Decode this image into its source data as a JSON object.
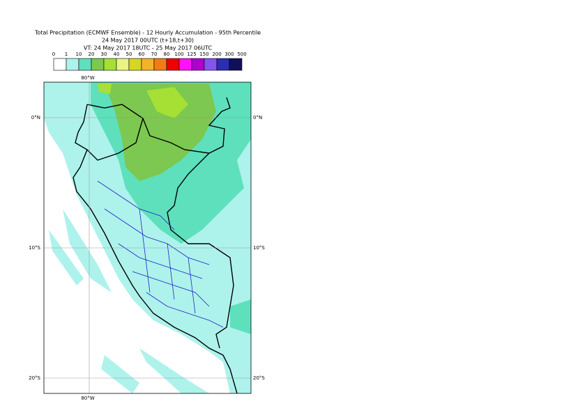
{
  "header": {
    "title": [
      "Total Precipitation (ECMWF Ensemble) - 12 Hourly Accumulation - 95th Percentile",
      "24 May 2017 00UTC (t+18,t+30)",
      "VT: 24 May 2017 18UTC - 25 May 2017 06UTC"
    ]
  },
  "legend": {
    "labels": [
      "0",
      "1",
      "10",
      "20",
      "30",
      "40",
      "50",
      "60",
      "70",
      "80",
      "100",
      "125",
      "150",
      "200",
      "300",
      "500"
    ],
    "colors": [
      "#ffffff",
      "#aef2ec",
      "#5ee0bc",
      "#7cc850",
      "#a6e034",
      "#e8f582",
      "#d6d624",
      "#f3b326",
      "#f27c14",
      "#f00000",
      "#ff10ff",
      "#b000d0",
      "#8454f0",
      "#2c2cb4",
      "#10105a"
    ]
  },
  "map": {
    "lon_labels": [
      "80°W",
      "80°W"
    ],
    "lat_labels_left": [
      "0°N",
      "10°S",
      "20°S"
    ],
    "lat_labels_right": [
      "0°N",
      "10°S",
      "20°S"
    ]
  }
}
